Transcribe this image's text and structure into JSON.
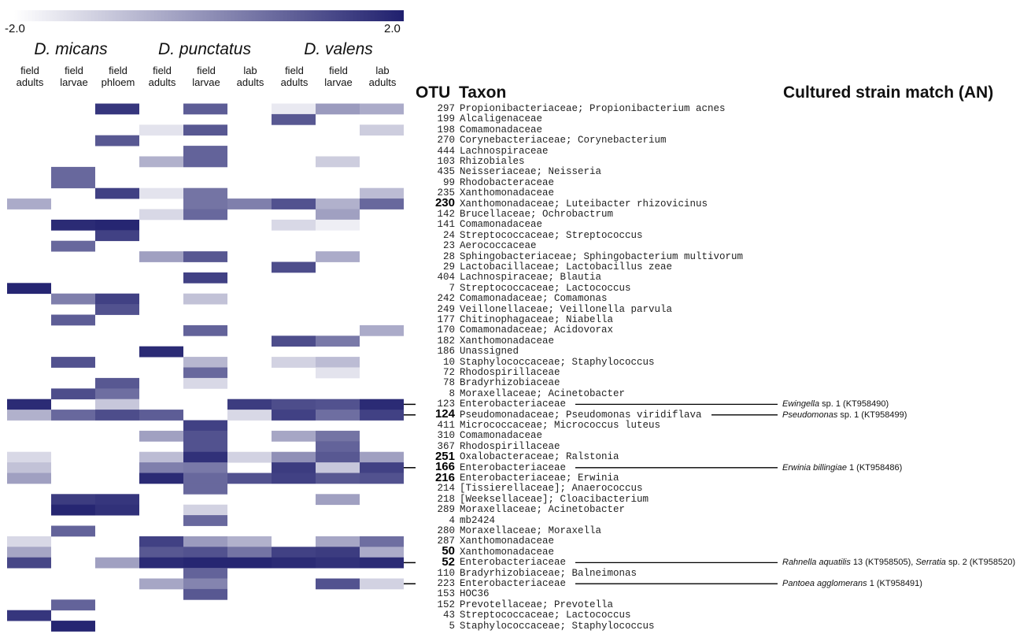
{
  "chart_data": {
    "type": "heatmap",
    "colorbar": {
      "min_label": "-2.0",
      "max_label": "2.0",
      "min": -2.0,
      "max": 2.0,
      "low_color": "#ffffff",
      "high_color": "#20206e"
    },
    "species": [
      "D. micans",
      "D. punctatus",
      "D. valens"
    ],
    "columns": [
      {
        "line1": "field",
        "line2": "adults"
      },
      {
        "line1": "field",
        "line2": "larvae"
      },
      {
        "line1": "field",
        "line2": "phloem"
      },
      {
        "line1": "field",
        "line2": "adults"
      },
      {
        "line1": "field",
        "line2": "larvae"
      },
      {
        "line1": "lab",
        "line2": "adults"
      },
      {
        "line1": "field",
        "line2": "adults"
      },
      {
        "line1": "field",
        "line2": "larvae"
      },
      {
        "line1": "lab",
        "line2": "adults"
      }
    ],
    "headers": {
      "otu": "OTU",
      "taxon": "Taxon",
      "match": "Cultured strain match (AN)"
    },
    "rows": [
      {
        "otu": "297",
        "taxon": "Propionibacteriaceae; Propionibacterium acnes",
        "values": [
          null,
          null,
          1.6,
          null,
          0.9,
          null,
          -1.6,
          -0.2,
          -0.5
        ]
      },
      {
        "otu": "199",
        "taxon": "Alcaligenaceae",
        "values": [
          null,
          null,
          null,
          null,
          null,
          null,
          1.0,
          null,
          null
        ]
      },
      {
        "otu": "198",
        "taxon": "Comamonadaceae",
        "values": [
          null,
          null,
          null,
          -1.5,
          1.0,
          null,
          null,
          null,
          -1.1
        ]
      },
      {
        "otu": "270",
        "taxon": "Corynebacteriaceae; Corynebacterium",
        "values": [
          null,
          null,
          1.0,
          null,
          null,
          null,
          null,
          null,
          null
        ]
      },
      {
        "otu": "444",
        "taxon": "Lachnospiraceae",
        "values": [
          null,
          null,
          null,
          null,
          0.8,
          null,
          null,
          null,
          null
        ]
      },
      {
        "otu": "103",
        "taxon": "Rhizobiales",
        "values": [
          null,
          null,
          null,
          -0.6,
          0.8,
          null,
          null,
          -1.1,
          null
        ]
      },
      {
        "otu": "435",
        "taxon": "Neisseriaceae; Neisseria",
        "values": [
          null,
          0.7,
          null,
          null,
          null,
          null,
          null,
          null,
          null
        ]
      },
      {
        "otu": "99",
        "taxon": "Rhodobacteraceae",
        "values": [
          null,
          0.7,
          null,
          null,
          null,
          null,
          null,
          null,
          null
        ]
      },
      {
        "otu": "235",
        "taxon": "Xanthomonadaceae",
        "values": [
          null,
          null,
          1.4,
          -1.5,
          0.5,
          null,
          null,
          null,
          -0.8
        ]
      },
      {
        "otu": "230",
        "bold": true,
        "taxon": "Xanthomonadaceae; Luteibacter rhizovicinus",
        "values": [
          -0.5,
          null,
          null,
          null,
          0.5,
          0.3,
          1.1,
          -0.6,
          0.7
        ]
      },
      {
        "otu": "142",
        "taxon": "Brucellaceae; Ochrobactrum",
        "values": [
          null,
          null,
          null,
          -1.3,
          0.7,
          null,
          null,
          -0.3,
          null
        ]
      },
      {
        "otu": "141",
        "taxon": "Comamonadaceae",
        "values": [
          null,
          1.8,
          1.9,
          null,
          null,
          null,
          -1.3,
          -1.7,
          null
        ]
      },
      {
        "otu": "24",
        "taxon": "Streptococcaceae; Streptococcus",
        "values": [
          null,
          null,
          1.4,
          null,
          null,
          null,
          null,
          null,
          null
        ]
      },
      {
        "otu": "23",
        "taxon": "Aerococcaceae",
        "values": [
          null,
          0.7,
          null,
          null,
          null,
          null,
          null,
          null,
          null
        ]
      },
      {
        "otu": "28",
        "taxon": "Sphingobacteriaceae; Sphingobacterium multivorum",
        "values": [
          null,
          null,
          null,
          -0.3,
          1.0,
          null,
          null,
          -0.5,
          null
        ]
      },
      {
        "otu": "29",
        "taxon": "Lactobacillaceae; Lactobacillus zeae",
        "values": [
          null,
          null,
          null,
          null,
          null,
          null,
          1.2,
          null,
          null
        ]
      },
      {
        "otu": "404",
        "taxon": "Lachnospiraceae; Blautia",
        "values": [
          null,
          null,
          null,
          null,
          1.4,
          null,
          null,
          null,
          null
        ]
      },
      {
        "otu": "7",
        "taxon": "Streptococcaceae; Lactococcus",
        "values": [
          1.9,
          null,
          null,
          null,
          null,
          null,
          null,
          null,
          null
        ]
      },
      {
        "otu": "242",
        "taxon": "Comamonadaceae; Comamonas",
        "values": [
          null,
          0.3,
          1.4,
          null,
          -0.9,
          null,
          null,
          null,
          null
        ]
      },
      {
        "otu": "249",
        "taxon": "Veillonellaceae; Veillonella parvula",
        "values": [
          null,
          null,
          1.1,
          null,
          null,
          null,
          null,
          null,
          null
        ]
      },
      {
        "otu": "177",
        "taxon": "Chitinophagaceae; Niabella",
        "values": [
          null,
          0.9,
          null,
          null,
          null,
          null,
          null,
          null,
          null
        ]
      },
      {
        "otu": "170",
        "taxon": "Comamonadaceae; Acidovorax",
        "values": [
          null,
          null,
          null,
          null,
          0.8,
          null,
          null,
          null,
          -0.5
        ]
      },
      {
        "otu": "182",
        "taxon": "Xanthomonadaceae",
        "values": [
          null,
          null,
          null,
          null,
          null,
          null,
          1.2,
          0.4,
          null
        ]
      },
      {
        "otu": "186",
        "taxon": "Unassigned",
        "values": [
          null,
          null,
          null,
          1.8,
          null,
          null,
          null,
          null,
          null
        ]
      },
      {
        "otu": "10",
        "taxon": "Staphylococcaceae; Staphylococcus",
        "values": [
          null,
          1.1,
          null,
          null,
          -0.7,
          null,
          -1.2,
          -0.8,
          null
        ]
      },
      {
        "otu": "72",
        "taxon": "Rhodospirillaceae",
        "values": [
          null,
          null,
          null,
          null,
          0.7,
          null,
          null,
          -1.5,
          null
        ]
      },
      {
        "otu": "78",
        "taxon": "Bradyrhizobiaceae",
        "values": [
          null,
          null,
          1.0,
          null,
          -1.3,
          null,
          null,
          null,
          null
        ]
      },
      {
        "otu": "8",
        "taxon": "Moraxellaceae; Acinetobacter",
        "values": [
          null,
          1.2,
          0.6,
          null,
          null,
          null,
          null,
          null,
          null
        ]
      },
      {
        "otu": "123",
        "taxon": "Enterobacteriaceae",
        "values": [
          1.8,
          null,
          -1.0,
          null,
          null,
          1.5,
          1.2,
          1.1,
          1.8
        ],
        "match": {
          "parts": [
            {
              "text": "Ewingella",
              "italic": true
            },
            {
              "text": " sp. 1 (KT958490)",
              "italic": false
            }
          ]
        }
      },
      {
        "otu": "124",
        "bold": true,
        "taxon": "Pseudomonadaceae; Pseudomonas viridiflava",
        "values": [
          -0.6,
          0.7,
          1.2,
          0.9,
          null,
          -1.3,
          1.4,
          0.6,
          1.4
        ],
        "match": {
          "parts": [
            {
              "text": "Pseudomonas",
              "italic": true
            },
            {
              "text": " sp. 1 (KT958499)",
              "italic": false
            }
          ]
        }
      },
      {
        "otu": "411",
        "taxon": "Micrococcaceae; Micrococcus luteus",
        "values": [
          null,
          null,
          null,
          null,
          1.4,
          null,
          null,
          null,
          null
        ]
      },
      {
        "otu": "310",
        "taxon": "Comamonadaceae",
        "values": [
          null,
          null,
          null,
          -0.3,
          1.1,
          null,
          -0.4,
          0.5,
          null
        ]
      },
      {
        "otu": "367",
        "taxon": "Rhodospirillaceae",
        "values": [
          null,
          null,
          null,
          null,
          1.1,
          null,
          null,
          0.8,
          null
        ]
      },
      {
        "otu": "251",
        "bold": true,
        "taxon": "Oxalobacteraceae; Ralstonia",
        "values": [
          -1.3,
          null,
          null,
          -0.8,
          1.7,
          -1.2,
          0.0,
          1.0,
          -0.3
        ]
      },
      {
        "otu": "166",
        "bold": true,
        "taxon": "Enterobacteriaceae",
        "values": [
          -0.9,
          null,
          null,
          0.3,
          0.4,
          null,
          1.5,
          -1.0,
          1.4
        ],
        "match": {
          "parts": [
            {
              "text": "Erwinia billingiae",
              "italic": true
            },
            {
              "text": " 1 (KT958486)",
              "italic": false
            }
          ]
        }
      },
      {
        "otu": "216",
        "bold": true,
        "taxon": "Enterobacteriaceae; Erwinia",
        "values": [
          -0.3,
          null,
          null,
          1.8,
          0.7,
          1.1,
          1.4,
          1.0,
          1.1
        ]
      },
      {
        "otu": "214",
        "taxon": "[Tissierellaceae]; Anaerococcus",
        "values": [
          null,
          null,
          null,
          null,
          0.7,
          null,
          null,
          null,
          null
        ]
      },
      {
        "otu": "218",
        "taxon": "[Weeksellaceae]; Cloacibacterium",
        "values": [
          null,
          1.5,
          1.6,
          null,
          null,
          null,
          null,
          -0.3,
          null
        ]
      },
      {
        "otu": "289",
        "taxon": "Moraxellaceae; Acinetobacter",
        "values": [
          null,
          1.9,
          1.7,
          null,
          -1.2,
          null,
          null,
          null,
          null
        ]
      },
      {
        "otu": "4",
        "taxon": "mb2424",
        "values": [
          null,
          null,
          null,
          null,
          0.7,
          null,
          null,
          null,
          null
        ]
      },
      {
        "otu": "280",
        "taxon": "Moraxellaceae; Moraxella",
        "values": [
          null,
          0.8,
          null,
          null,
          null,
          null,
          null,
          null,
          null
        ]
      },
      {
        "otu": "287",
        "taxon": "Xanthomonadaceae",
        "values": [
          -1.3,
          null,
          null,
          1.4,
          -0.2,
          -0.6,
          null,
          -0.4,
          0.6
        ]
      },
      {
        "otu": "50",
        "bold": true,
        "taxon": "Xanthomonadaceae",
        "values": [
          -0.4,
          null,
          null,
          1.0,
          1.1,
          0.5,
          1.4,
          1.5,
          -0.5
        ]
      },
      {
        "otu": "52",
        "bold": true,
        "taxon": "Enterobacteriaceae",
        "values": [
          1.3,
          null,
          -0.3,
          1.8,
          1.9,
          1.9,
          1.8,
          1.7,
          1.8
        ],
        "match": {
          "parts": [
            {
              "text": "Rahnella aquatilis",
              "italic": true
            },
            {
              "text": " 13 (KT958505), ",
              "italic": false
            },
            {
              "text": "Serratia",
              "italic": true
            },
            {
              "text": " sp. 2 (KT958520)",
              "italic": false
            }
          ]
        }
      },
      {
        "otu": "110",
        "taxon": "Bradyrhizobiaceae; Balneimonas",
        "values": [
          null,
          null,
          null,
          null,
          0.8,
          null,
          null,
          null,
          null
        ]
      },
      {
        "otu": "223",
        "taxon": "Enterobacteriaceae",
        "values": [
          null,
          null,
          null,
          -0.4,
          0.2,
          null,
          null,
          1.1,
          -1.2
        ],
        "match": {
          "parts": [
            {
              "text": "Pantoea agglomerans",
              "italic": true
            },
            {
              "text": " 1 (KT958491)",
              "italic": false
            }
          ]
        }
      },
      {
        "otu": "153",
        "taxon": "HOC36",
        "values": [
          null,
          null,
          null,
          null,
          1.0,
          null,
          null,
          null,
          null
        ]
      },
      {
        "otu": "152",
        "taxon": "Prevotellaceae; Prevotella",
        "values": [
          null,
          0.8,
          null,
          null,
          null,
          null,
          null,
          null,
          null
        ]
      },
      {
        "otu": "43",
        "taxon": "Streptococcaceae; Lactococcus",
        "values": [
          1.6,
          null,
          null,
          null,
          null,
          null,
          null,
          null,
          null
        ]
      },
      {
        "otu": "5",
        "taxon": "Staphylococcaceae; Staphylococcus",
        "values": [
          null,
          1.9,
          null,
          null,
          null,
          null,
          null,
          null,
          null
        ]
      }
    ]
  }
}
